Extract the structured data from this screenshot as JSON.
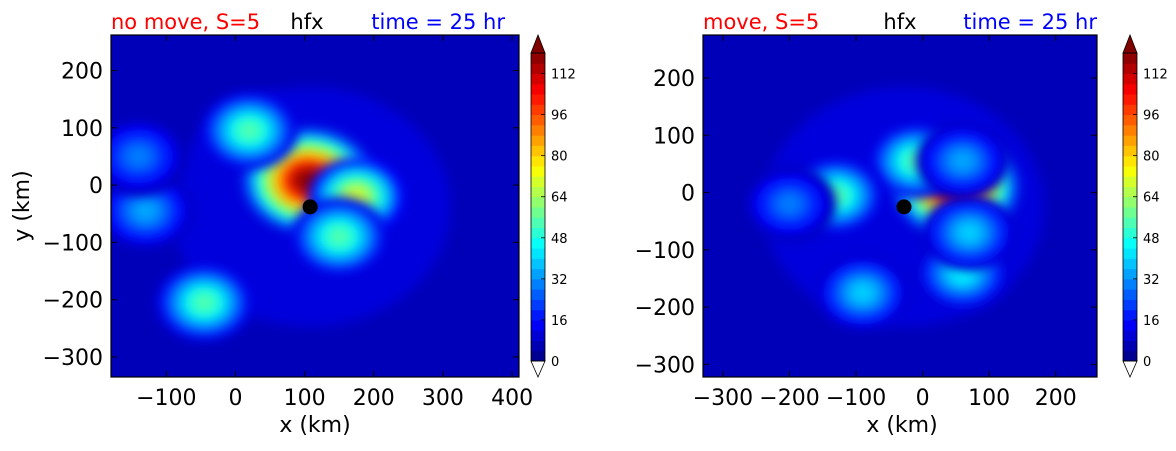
{
  "chart_data": [
    {
      "type": "heatmap",
      "variable": "hfx",
      "title_left": "no move, S=5",
      "title_center": "hfx",
      "title_right": "time = 25 hr",
      "title_left_color": "#ff0000",
      "title_right_color": "#0000ff",
      "xlabel": "x (km)",
      "ylabel": "y (km)",
      "xlim": [
        -180,
        410
      ],
      "ylim": [
        -335,
        262
      ],
      "xticks": [
        -100,
        0,
        100,
        200,
        300,
        400
      ],
      "xtick_labels": [
        "−100",
        "0",
        "100",
        "200",
        "300",
        "400"
      ],
      "yticks": [
        -300,
        -200,
        -100,
        0,
        100,
        200
      ],
      "ytick_labels": [
        "−300",
        "−200",
        "−100",
        "0",
        "100",
        "200"
      ],
      "center_marker": {
        "x": 108,
        "y": -38
      },
      "hotspots": [
        {
          "x": 105,
          "y": 8,
          "peak": 118
        },
        {
          "x": 175,
          "y": -20,
          "peak": 70
        },
        {
          "x": 20,
          "y": 95,
          "peak": 55
        },
        {
          "x": 150,
          "y": -90,
          "peak": 55
        },
        {
          "x": -45,
          "y": -205,
          "peak": 55
        },
        {
          "x": -130,
          "y": -45,
          "peak": 35
        },
        {
          "x": -140,
          "y": 50,
          "peak": 30
        }
      ],
      "colorbar": {
        "min": 0,
        "max": 120,
        "ticks": [
          0,
          16,
          32,
          48,
          64,
          80,
          96,
          112
        ],
        "extend": "both"
      }
    },
    {
      "type": "heatmap",
      "variable": "hfx",
      "title_left": "move, S=5",
      "title_center": "hfx",
      "title_right": "time = 25 hr",
      "title_left_color": "#ff0000",
      "title_right_color": "#0000ff",
      "xlabel": "x (km)",
      "ylabel": "",
      "xlim": [
        -330,
        262
      ],
      "ylim": [
        -322,
        275
      ],
      "xticks": [
        -300,
        -200,
        -100,
        0,
        100,
        200
      ],
      "xtick_labels": [
        "−300",
        "−200",
        "−100",
        "0",
        "100",
        "200"
      ],
      "yticks": [
        -300,
        -200,
        -100,
        0,
        100,
        200
      ],
      "ytick_labels": [
        "−300",
        "−200",
        "−100",
        "0",
        "100",
        "200"
      ],
      "center_marker": {
        "x": -28,
        "y": -25
      },
      "hotspots": [
        {
          "x": 50,
          "y": 10,
          "peak": 118
        },
        {
          "x": -10,
          "y": 55,
          "peak": 55
        },
        {
          "x": -130,
          "y": -5,
          "peak": 55
        },
        {
          "x": 60,
          "y": -140,
          "peak": 45
        },
        {
          "x": -90,
          "y": -175,
          "peak": 40
        },
        {
          "x": 70,
          "y": -70,
          "peak": 40
        },
        {
          "x": -200,
          "y": -20,
          "peak": 30
        },
        {
          "x": 60,
          "y": 55,
          "peak": 35
        }
      ],
      "colorbar": {
        "min": 0,
        "max": 120,
        "ticks": [
          0,
          16,
          32,
          48,
          64,
          80,
          96,
          112
        ],
        "extend": "both"
      }
    }
  ]
}
